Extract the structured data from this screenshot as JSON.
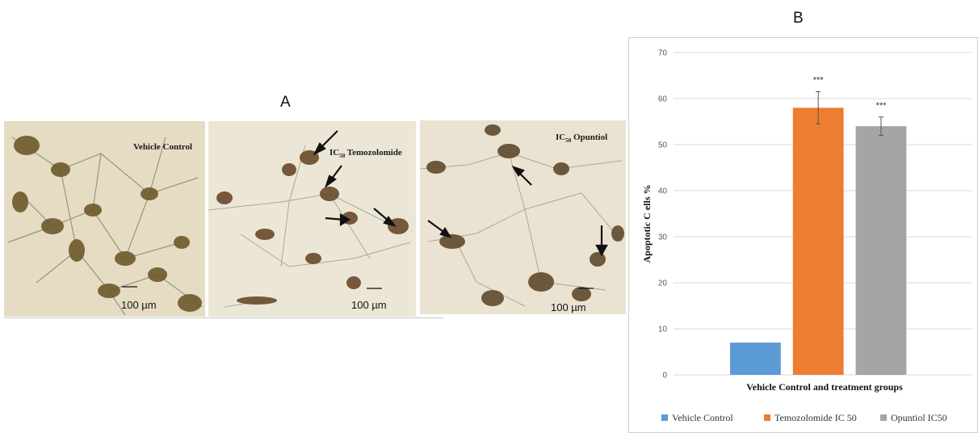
{
  "panel_a": {
    "letter": "A",
    "images": [
      {
        "label_prefix": "",
        "label_sub": "",
        "label_text": "Vehicle Control",
        "scale": "100 µm"
      },
      {
        "label_prefix": "IC",
        "label_sub": "50",
        "label_text": " Temozolomide",
        "scale": "100 µm"
      },
      {
        "label_prefix": "IC",
        "label_sub": "50",
        "label_text": " Opuntiol",
        "scale": "100 µm"
      }
    ]
  },
  "panel_b": {
    "letter": "B"
  },
  "chart_data": {
    "type": "bar",
    "categories": [
      "Vehicle Control",
      "Temozolomide IC 50",
      "Opuntiol IC50"
    ],
    "values": [
      7,
      58,
      54
    ],
    "errors": [
      0,
      3.5,
      2
    ],
    "significance": [
      "",
      "***",
      "***"
    ],
    "colors": [
      "#5b9bd5",
      "#ed7d31",
      "#a5a5a5"
    ],
    "ylim": [
      0,
      70
    ],
    "yticks": [
      0,
      10,
      20,
      30,
      40,
      50,
      60,
      70
    ],
    "ylabel": "Apoptotic  C ells %",
    "xlabel": "Vehicle Control  and  treatment groups",
    "legend": [
      "Vehicle Control",
      "Temozolomide IC 50",
      "Opuntiol IC50"
    ],
    "legend_position": "bottom",
    "grid": true
  }
}
